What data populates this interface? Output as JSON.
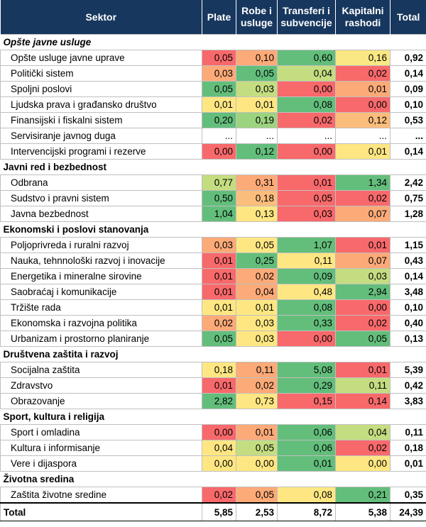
{
  "colors": {
    "header_bg": "#17375e",
    "green": "#63be7b",
    "red": "#f8696b",
    "yellow": "#ffeb84",
    "white": "#ffffff"
  },
  "header": {
    "sektor": "Sektor",
    "plate": "Plate",
    "robe": "Robe i usluge",
    "transferi": "Transferi i subvencije",
    "kapitalni": "Kapitalni rashodi",
    "total": "Total"
  },
  "sections": [
    {
      "title": "Opšte javne usluge",
      "rows": [
        {
          "name": "Opšte usluge javne uprave",
          "values": [
            "0,05",
            "0,10",
            "0,60",
            "0,16"
          ],
          "colors": [
            "#f8696b",
            "#fcaa78",
            "#63be7b",
            "#f9e883"
          ],
          "total": "0,92"
        },
        {
          "name": "Politički sistem",
          "values": [
            "0,03",
            "0,05",
            "0,04",
            "0,02"
          ],
          "colors": [
            "#fcaa78",
            "#63be7b",
            "#c4dd81",
            "#f8696b"
          ],
          "total": "0,14"
        },
        {
          "name": "Spoljni poslovi",
          "values": [
            "0,05",
            "0,03",
            "0,00",
            "0,01"
          ],
          "colors": [
            "#63be7b",
            "#c4dd81",
            "#f8696b",
            "#fcaa78"
          ],
          "total": "0,09"
        },
        {
          "name": "Ljudska prava i građansko društvo",
          "values": [
            "0,01",
            "0,01",
            "0,08",
            "0,00"
          ],
          "colors": [
            "#fee783",
            "#fee783",
            "#63be7b",
            "#f8696b"
          ],
          "total": "0,10"
        },
        {
          "name": "Finansijski i fiskalni sistem",
          "values": [
            "0,20",
            "0,19",
            "0,02",
            "0,12"
          ],
          "colors": [
            "#63be7b",
            "#9cd37f",
            "#f8696b",
            "#fbbd7b"
          ],
          "total": "0,53"
        },
        {
          "name": "Servisiranje javnog duga",
          "values": [
            "...",
            "...",
            "...",
            "..."
          ],
          "colors": [
            "#ffffff",
            "#ffffff",
            "#ffffff",
            "#ffffff"
          ],
          "total": "..."
        },
        {
          "name": "Intervencijski programi i rezerve",
          "values": [
            "0,00",
            "0,12",
            "0,00",
            "0,01"
          ],
          "colors": [
            "#f8696b",
            "#63be7b",
            "#f8696b",
            "#fee783"
          ],
          "total": "0,14"
        }
      ]
    },
    {
      "title": "Javni red i bezbednost",
      "rows": [
        {
          "name": "Odbrana",
          "values": [
            "0,77",
            "0,31",
            "0,01",
            "1,34"
          ],
          "colors": [
            "#c4dd81",
            "#fcaa78",
            "#f8696b",
            "#63be7b"
          ],
          "total": "2,42"
        },
        {
          "name": "Sudstvo i pravni sistem",
          "values": [
            "0,50",
            "0,18",
            "0,05",
            "0,02"
          ],
          "colors": [
            "#63be7b",
            "#fbbd7b",
            "#f8696b",
            "#f8696b"
          ],
          "total": "0,75"
        },
        {
          "name": "Javna bezbednost",
          "values": [
            "1,04",
            "0,13",
            "0,03",
            "0,07"
          ],
          "colors": [
            "#63be7b",
            "#fee783",
            "#f8696b",
            "#fcaa78"
          ],
          "total": "1,28"
        }
      ]
    },
    {
      "title": "Ekonomski i poslovi stanovanja",
      "rows": [
        {
          "name": "Poljoprivreda i ruralni razvoj",
          "values": [
            "0,03",
            "0,05",
            "1,07",
            "0,01"
          ],
          "colors": [
            "#fcaa78",
            "#fee783",
            "#63be7b",
            "#f8696b"
          ],
          "total": "1,15"
        },
        {
          "name": "Nauka, tehnnološki razvoj i inovacije",
          "values": [
            "0,01",
            "0,25",
            "0,11",
            "0,07"
          ],
          "colors": [
            "#f8696b",
            "#63be7b",
            "#fee783",
            "#fcaa78"
          ],
          "total": "0,43"
        },
        {
          "name": "Energetika i mineralne sirovine",
          "values": [
            "0,01",
            "0,02",
            "0,09",
            "0,03"
          ],
          "colors": [
            "#f8696b",
            "#fcaa78",
            "#63be7b",
            "#c4dd81"
          ],
          "total": "0,14"
        },
        {
          "name": "Saobraćaj i komunikacije",
          "values": [
            "0,01",
            "0,04",
            "0,48",
            "2,94"
          ],
          "colors": [
            "#f8696b",
            "#fcaa78",
            "#fee783",
            "#63be7b"
          ],
          "total": "3,48"
        },
        {
          "name": "Tržište rada",
          "values": [
            "0,01",
            "0,01",
            "0,08",
            "0,00"
          ],
          "colors": [
            "#fee783",
            "#fee783",
            "#63be7b",
            "#f8696b"
          ],
          "total": "0,10"
        },
        {
          "name": "Ekonomska i razvojna politika",
          "values": [
            "0,02",
            "0,03",
            "0,33",
            "0,02"
          ],
          "colors": [
            "#fcaa78",
            "#fee783",
            "#63be7b",
            "#f8696b"
          ],
          "total": "0,40"
        },
        {
          "name": "Urbanizam i prostorno planiranje",
          "values": [
            "0,05",
            "0,03",
            "0,00",
            "0,05"
          ],
          "colors": [
            "#63be7b",
            "#fee783",
            "#f8696b",
            "#63be7b"
          ],
          "total": "0,13"
        }
      ]
    },
    {
      "title": "Društvena zaštita i razvoj",
      "rows": [
        {
          "name": "Socijalna zaštita",
          "values": [
            "0,18",
            "0,11",
            "5,08",
            "0,01"
          ],
          "colors": [
            "#fee783",
            "#fcaa78",
            "#63be7b",
            "#f8696b"
          ],
          "total": "5,39"
        },
        {
          "name": "Zdravstvo",
          "values": [
            "0,01",
            "0,02",
            "0,29",
            "0,11"
          ],
          "colors": [
            "#f8696b",
            "#fcaa78",
            "#63be7b",
            "#c4dd81"
          ],
          "total": "0,42"
        },
        {
          "name": "Obrazovanje",
          "values": [
            "2,82",
            "0,73",
            "0,15",
            "0,14"
          ],
          "colors": [
            "#63be7b",
            "#fee783",
            "#f8696b",
            "#f8696b"
          ],
          "total": "3,83"
        }
      ]
    },
    {
      "title": "Sport, kultura i religija",
      "rows": [
        {
          "name": "Sport i omladina",
          "values": [
            "0,00",
            "0,01",
            "0,06",
            "0,04"
          ],
          "colors": [
            "#f8696b",
            "#fcaa78",
            "#63be7b",
            "#c4dd81"
          ],
          "total": "0,11"
        },
        {
          "name": "Kultura i informisanje",
          "values": [
            "0,04",
            "0,05",
            "0,06",
            "0,02"
          ],
          "colors": [
            "#fee783",
            "#c4dd81",
            "#63be7b",
            "#f8696b"
          ],
          "total": "0,18"
        },
        {
          "name": "Vere i dijaspora",
          "values": [
            "0,00",
            "0,00",
            "0,01",
            "0,00"
          ],
          "colors": [
            "#fee783",
            "#fee783",
            "#63be7b",
            "#fee783"
          ],
          "total": "0,01"
        }
      ]
    },
    {
      "title": "Životna sredina",
      "rows": [
        {
          "name": "Zaštita životne sredine",
          "values": [
            "0,02",
            "0,05",
            "0,08",
            "0,21"
          ],
          "colors": [
            "#f8696b",
            "#fcaa78",
            "#fee783",
            "#63be7b"
          ],
          "total": "0,35"
        }
      ]
    }
  ],
  "grand_total": {
    "label": "Total",
    "values": [
      "5,85",
      "2,53",
      "8,72",
      "5,38"
    ],
    "total": "24,39"
  }
}
